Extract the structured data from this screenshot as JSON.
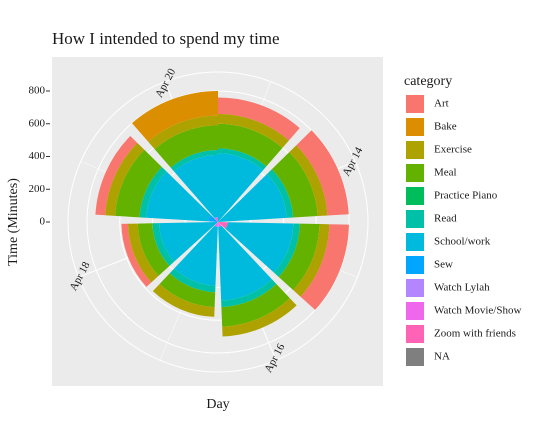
{
  "chart_data": {
    "type": "polar_stacked_bar",
    "title": "How I intended to spend my time",
    "x_label": "Day",
    "y_label": "Time (Minutes)",
    "legend_title": "category",
    "categories": [
      null,
      "Apr 14",
      null,
      "Apr 16",
      null,
      "Apr 18",
      null,
      "Apr 20"
    ],
    "ylim": [
      0,
      800
    ],
    "yticks": [
      0,
      200,
      400,
      600,
      800
    ],
    "grid": true,
    "series": [
      {
        "name": "Art",
        "color": "#F8766D",
        "values": [
          100,
          130,
          120,
          null,
          null,
          40,
          60,
          null
        ]
      },
      {
        "name": "Bake",
        "color": "#DB8E00",
        "values": [
          null,
          null,
          null,
          null,
          null,
          null,
          null,
          150
        ]
      },
      {
        "name": "Exercise",
        "color": "#AEA200",
        "values": [
          60,
          60,
          60,
          60,
          60,
          60,
          60,
          60
        ]
      },
      {
        "name": "Meal",
        "color": "#64B200",
        "values": [
          150,
          150,
          120,
          120,
          90,
          90,
          150,
          150
        ]
      },
      {
        "name": "Practice Piano",
        "color": "#00BD5C",
        "values": [
          null,
          null,
          null,
          null,
          null,
          null,
          null,
          null
        ]
      },
      {
        "name": "Read",
        "color": "#00C1A7",
        "values": [
          30,
          40,
          40,
          40,
          40,
          40,
          40,
          30
        ]
      },
      {
        "name": "School/work",
        "color": "#00BADE",
        "values": [
          420,
          420,
          400,
          450,
          360,
          360,
          380,
          380
        ]
      },
      {
        "name": "Sew",
        "color": "#00A6FF",
        "values": [
          null,
          null,
          null,
          null,
          null,
          null,
          60,
          null
        ]
      },
      {
        "name": "Watch Lylah",
        "color": "#B385FF",
        "values": [
          null,
          null,
          null,
          null,
          null,
          null,
          null,
          null
        ]
      },
      {
        "name": "Watch Movie/Show",
        "color": "#EF67EB",
        "values": [
          null,
          null,
          null,
          30,
          30,
          null,
          null,
          30
        ]
      },
      {
        "name": "Zoom with friends",
        "color": "#FF63B6",
        "values": [
          null,
          null,
          60,
          null,
          null,
          null,
          null,
          null
        ]
      },
      {
        "name": "NA",
        "color": "#7F7F7F",
        "values": [
          null,
          null,
          null,
          null,
          null,
          null,
          null,
          null
        ]
      }
    ]
  }
}
